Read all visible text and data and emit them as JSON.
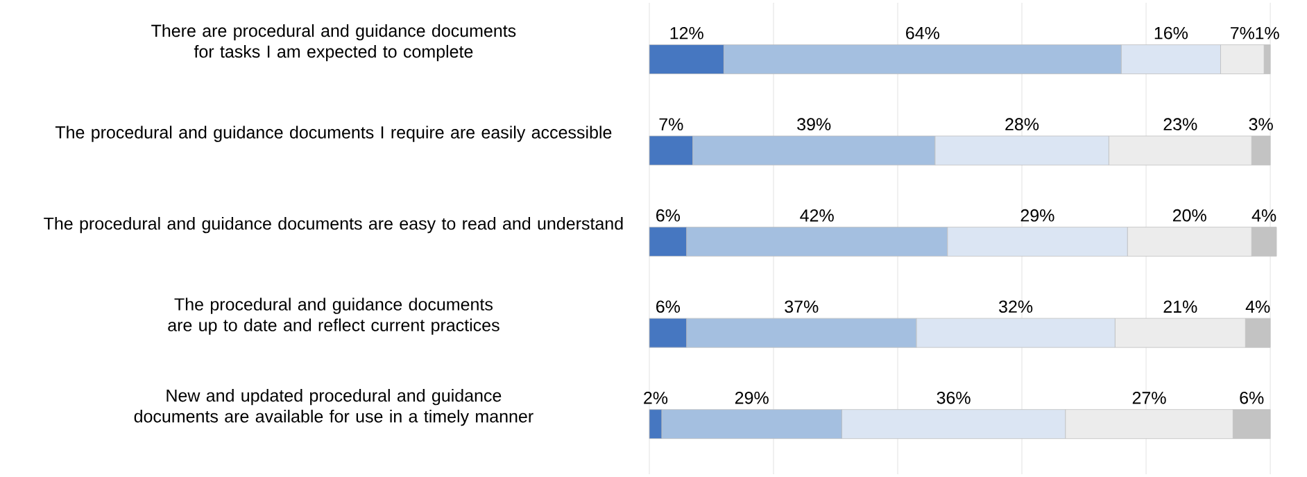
{
  "chart_data": {
    "type": "bar",
    "orientation": "horizontal",
    "stacked": true,
    "categories": [
      "There are procedural and guidance documents for tasks I am expected to complete",
      "The procedural and guidance documents I require are easily accessible",
      "The procedural and guidance documents are easy to read and understand",
      "The procedural and guidance documents are up to date and reflect current practices",
      "New and updated procedural and guidance documents are available for use in a timely manner"
    ],
    "series": [
      {
        "color": "#4677c1",
        "values": [
          12,
          7,
          6,
          6,
          2
        ],
        "value_labels": [
          "12%",
          "7%",
          "6%",
          "6%",
          "2%"
        ]
      },
      {
        "color": "#a4bfe0",
        "values": [
          64,
          39,
          42,
          37,
          29
        ],
        "value_labels": [
          "64%",
          "39%",
          "42%",
          "37%",
          "29%"
        ]
      },
      {
        "color": "#dbe5f3",
        "values": [
          16,
          28,
          29,
          32,
          36
        ],
        "value_labels": [
          "16%",
          "28%",
          "29%",
          "32%",
          "36%"
        ]
      },
      {
        "color": "#ececec",
        "values": [
          7,
          23,
          20,
          21,
          27
        ],
        "value_labels": [
          "7%",
          "23%",
          "20%",
          "21%",
          "27%"
        ]
      },
      {
        "color": "#c3c3c3",
        "values": [
          1,
          3,
          4,
          4,
          6
        ],
        "value_labels": [
          "1%",
          "3%",
          "4%",
          "4%",
          "6%"
        ]
      }
    ],
    "xlim": [
      0,
      101
    ],
    "xticks": [
      {
        "value": 0,
        "label": null
      },
      {
        "value": 20,
        "label": null
      },
      {
        "value": 40,
        "label": null
      },
      {
        "value": 60,
        "label": null
      },
      {
        "value": 80,
        "label": null
      },
      {
        "value": 100,
        "label": null
      }
    ],
    "grid": "x"
  }
}
